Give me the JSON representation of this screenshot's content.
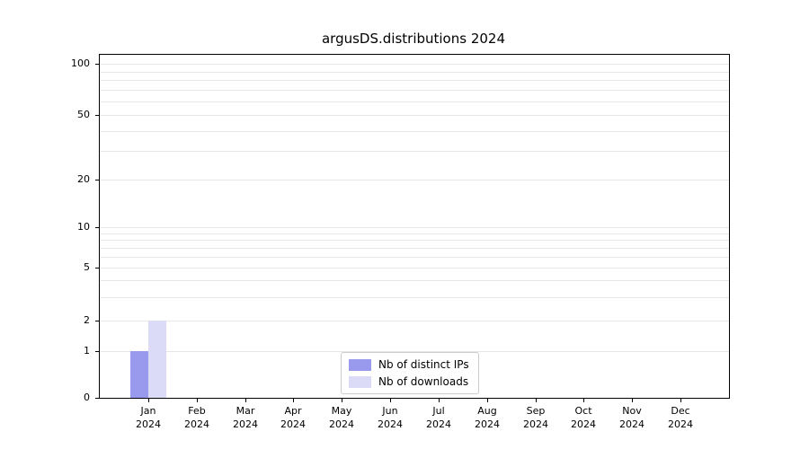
{
  "chart_data": {
    "type": "bar",
    "title": "argusDS.distributions 2024",
    "categories": [
      "Jan 2024",
      "Feb 2024",
      "Mar 2024",
      "Apr 2024",
      "May 2024",
      "Jun 2024",
      "Jul 2024",
      "Aug 2024",
      "Sep 2024",
      "Oct 2024",
      "Nov 2024",
      "Dec 2024"
    ],
    "x_tick_month_line": [
      "Jan",
      "Feb",
      "Mar",
      "Apr",
      "May",
      "Jun",
      "Jul",
      "Aug",
      "Sep",
      "Oct",
      "Nov",
      "Dec"
    ],
    "x_tick_year_line": "2024",
    "series": [
      {
        "name": "Nb of distinct IPs",
        "color": "#9999ee",
        "values": [
          1,
          0,
          0,
          0,
          0,
          0,
          0,
          0,
          0,
          0,
          0,
          0
        ]
      },
      {
        "name": "Nb of downloads",
        "color": "#dbdbf8",
        "values": [
          2,
          0,
          0,
          0,
          0,
          0,
          0,
          0,
          0,
          0,
          0,
          0
        ]
      }
    ],
    "y_scale": "symlog",
    "ylim": [
      0,
      100
    ],
    "y_ticks": [
      0,
      1,
      2,
      5,
      10,
      20,
      50,
      100
    ],
    "y_minor_gridlines": [
      1,
      2,
      3,
      4,
      5,
      6,
      7,
      8,
      9,
      10,
      20,
      30,
      40,
      50,
      60,
      70,
      80,
      90,
      100
    ],
    "grid": "horizontal",
    "legend": {
      "position": "bottom-center-inside",
      "entries": [
        "Nb of distinct IPs",
        "Nb of downloads"
      ]
    }
  }
}
